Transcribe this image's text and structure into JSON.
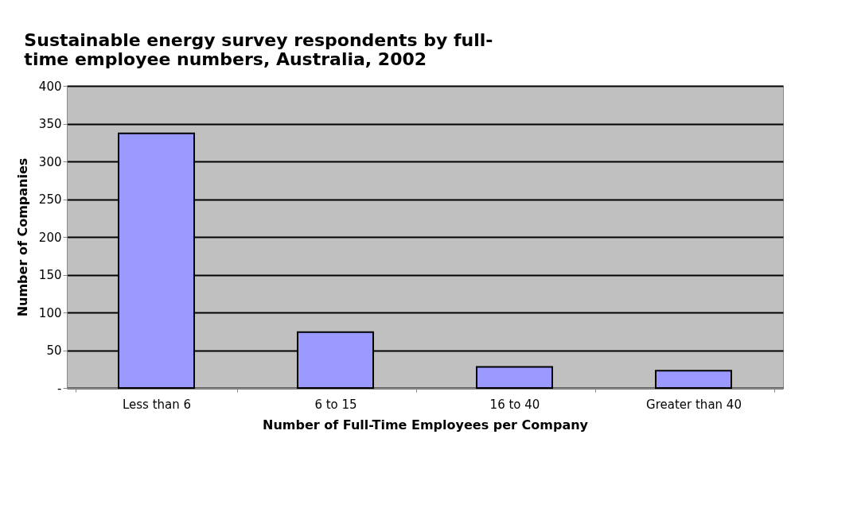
{
  "chart_data": {
    "type": "bar",
    "title": "Sustainable energy survey respondents by full-time employee numbers, Australia, 2002",
    "xlabel": "Number of Full-Time Employees per Company",
    "ylabel": "Number of Companies",
    "categories": [
      "Less than 6",
      "6 to 15",
      "16 to 40",
      "Greater than 40"
    ],
    "values": [
      337,
      74,
      28,
      23
    ],
    "color": "#9999ff",
    "ylim": [
      0,
      400
    ],
    "yticks": [
      {
        "value": 0,
        "label": "-"
      },
      50,
      100,
      150,
      200,
      250,
      300,
      350,
      400
    ],
    "grid": "y"
  }
}
